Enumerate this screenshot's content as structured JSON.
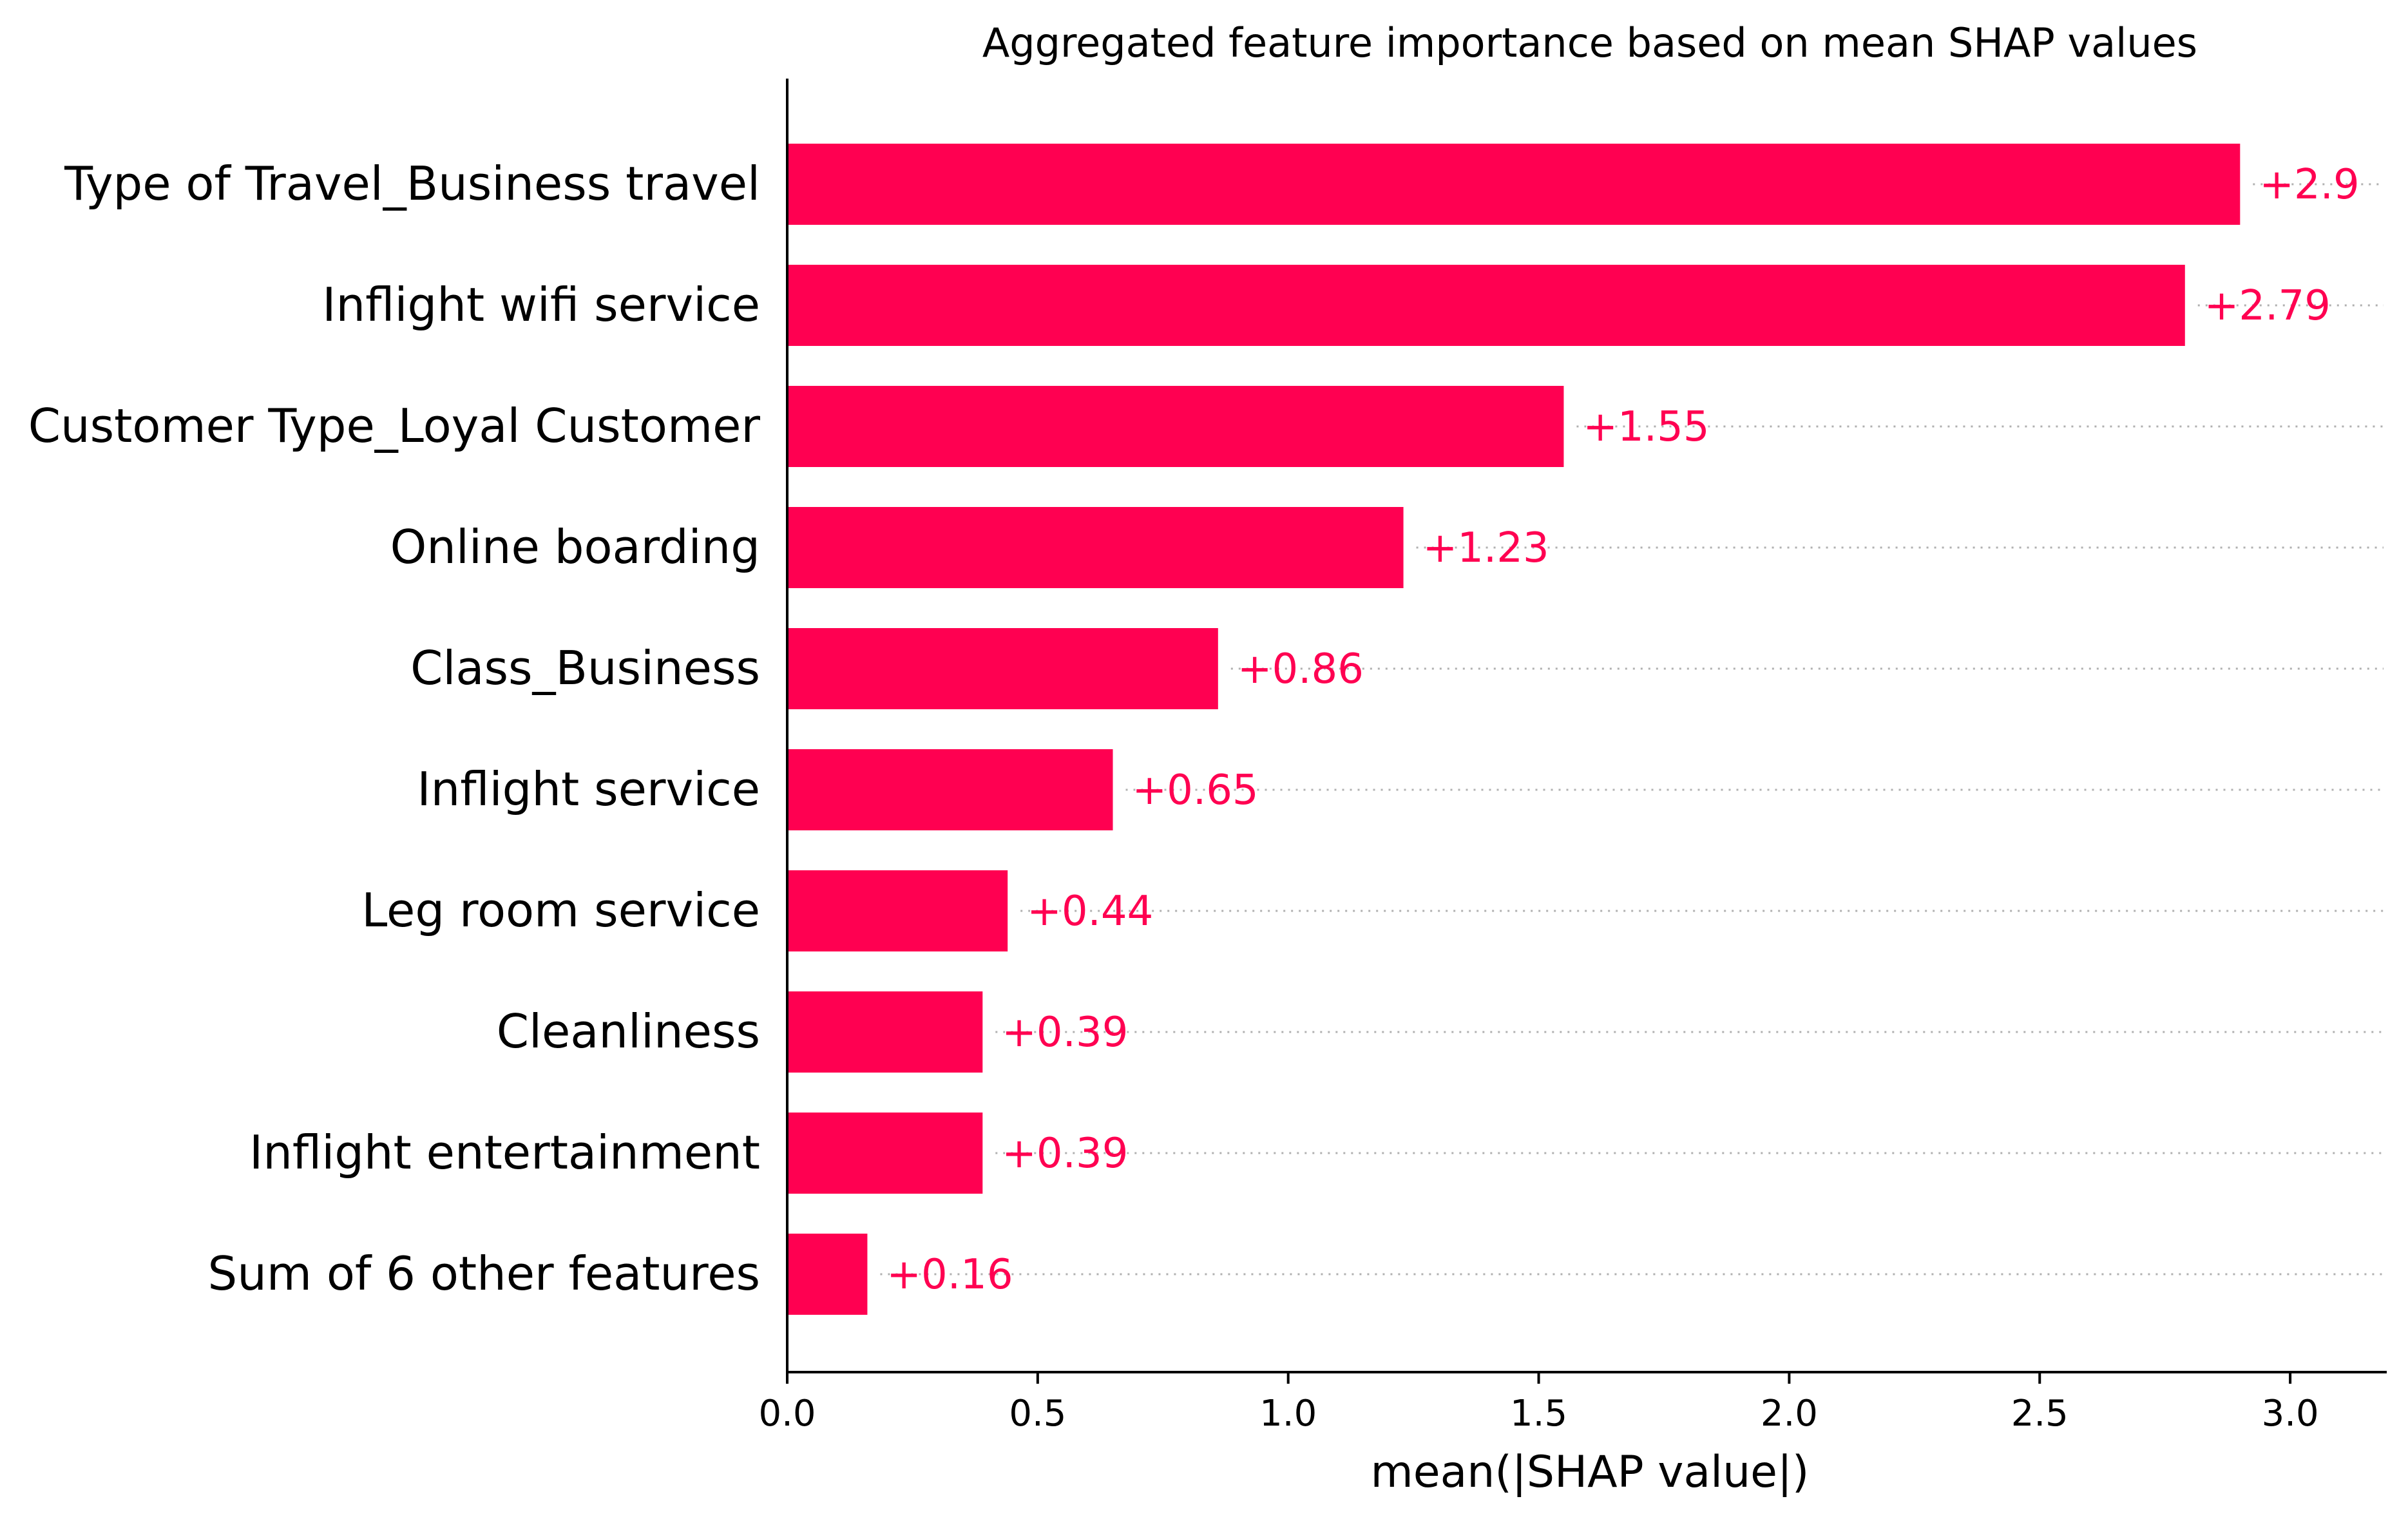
{
  "chart_data": {
    "type": "bar",
    "orientation": "horizontal",
    "title": "Aggregated feature importance based on mean SHAP values",
    "xlabel": "mean(|SHAP value|)",
    "ylabel": "",
    "xlim": [
      0,
      3.2
    ],
    "xticks": [
      "0.0",
      "0.5",
      "1.0",
      "1.5",
      "2.0",
      "2.5",
      "3.0"
    ],
    "grid": "dotted horizontal guides per bar",
    "legend": "none",
    "bar_color": "#ff0051",
    "categories": [
      "Type of Travel_Business travel",
      "Inflight wifi service",
      "Customer Type_Loyal Customer",
      "Online boarding",
      "Class_Business",
      "Inflight service",
      "Leg room service",
      "Cleanliness",
      "Inflight entertainment",
      "Sum of 6 other features"
    ],
    "values": [
      2.9,
      2.79,
      1.55,
      1.23,
      0.86,
      0.65,
      0.44,
      0.39,
      0.39,
      0.16
    ],
    "data_labels": [
      "+2.9",
      "+2.79",
      "+1.55",
      "+1.23",
      "+0.86",
      "+0.65",
      "+0.44",
      "+0.39",
      "+0.39",
      "+0.16"
    ]
  }
}
